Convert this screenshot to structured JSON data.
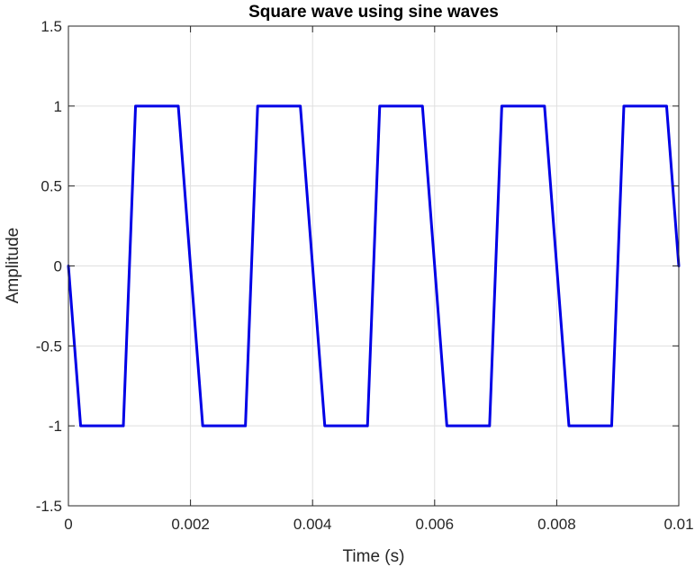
{
  "chart_data": {
    "type": "line",
    "title": "Square wave using sine waves",
    "xlabel": "Time (s)",
    "ylabel": "Amplitude",
    "xlim": [
      0,
      0.01
    ],
    "ylim": [
      -1.5,
      1.5
    ],
    "grid": true,
    "x_ticks": [
      0,
      0.002,
      0.004,
      0.006,
      0.008,
      0.01
    ],
    "x_tick_labels": [
      "0",
      "0.002",
      "0.004",
      "0.006",
      "0.008",
      "0.01"
    ],
    "y_ticks": [
      -1.5,
      -1,
      -0.5,
      0,
      0.5,
      1,
      1.5
    ],
    "y_tick_labels": [
      "-1.5",
      "-1",
      "-0.5",
      "0",
      "0.5",
      "1",
      "1.5"
    ],
    "series": [
      {
        "color": "#0000e6",
        "x": [
          0,
          0.0002,
          0.0009,
          0.0011,
          0.0018,
          0.0022,
          0.0029,
          0.0031,
          0.0038,
          0.0042,
          0.0049,
          0.0051,
          0.0058,
          0.0062,
          0.0069,
          0.0071,
          0.0078,
          0.0082,
          0.0089,
          0.0091,
          0.0098,
          0.01
        ],
        "y": [
          0,
          -1,
          -1,
          1,
          1,
          -1,
          -1,
          1,
          1,
          -1,
          -1,
          1,
          1,
          -1,
          -1,
          1,
          1,
          -1,
          -1,
          1,
          1,
          0
        ]
      }
    ]
  }
}
